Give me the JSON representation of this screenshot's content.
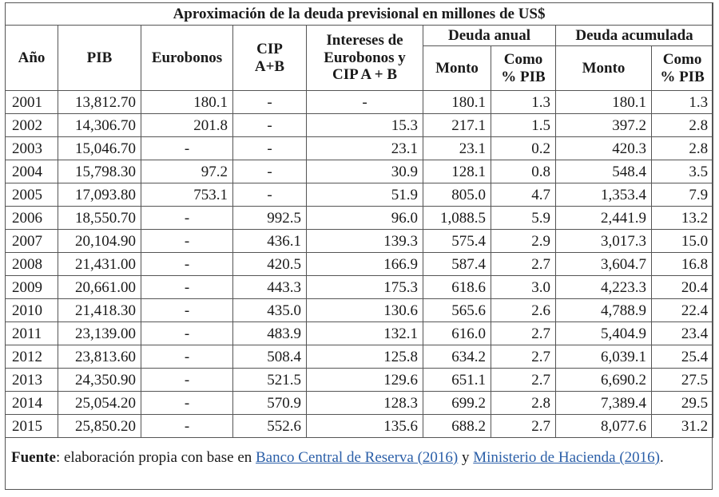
{
  "title": "Aproximación de la deuda previsional en millones de US$",
  "headers": {
    "anio": "Año",
    "pib": "PIB",
    "eurobonos": "Eurobonos",
    "cip_line1": "CIP",
    "cip_line2": "A+B",
    "intereses_line1": "Intereses de",
    "intereses_line2": "Eurobonos y",
    "intereses_line3": "CIP A + B",
    "deuda_anual": "Deuda anual",
    "deuda_acumulada": "Deuda acumulada",
    "monto": "Monto",
    "como_line1": "Como",
    "como_line2": "% PIB"
  },
  "rows": [
    {
      "anio": "2001",
      "pib": "13,812.70",
      "eurobonos": "180.1",
      "cip": "-",
      "intereses": "-",
      "anual_monto": "180.1",
      "anual_pct": "1.3",
      "acum_monto": "180.1",
      "acum_pct": "1.3"
    },
    {
      "anio": "2002",
      "pib": "14,306.70",
      "eurobonos": "201.8",
      "cip": "-",
      "intereses": "15.3",
      "anual_monto": "217.1",
      "anual_pct": "1.5",
      "acum_monto": "397.2",
      "acum_pct": "2.8"
    },
    {
      "anio": "2003",
      "pib": "15,046.70",
      "eurobonos": "-",
      "cip": "-",
      "intereses": "23.1",
      "anual_monto": "23.1",
      "anual_pct": "0.2",
      "acum_monto": "420.3",
      "acum_pct": "2.8"
    },
    {
      "anio": "2004",
      "pib": "15,798.30",
      "eurobonos": "97.2",
      "cip": "-",
      "intereses": "30.9",
      "anual_monto": "128.1",
      "anual_pct": "0.8",
      "acum_monto": "548.4",
      "acum_pct": "3.5"
    },
    {
      "anio": "2005",
      "pib": "17,093.80",
      "eurobonos": "753.1",
      "cip": "-",
      "intereses": "51.9",
      "anual_monto": "805.0",
      "anual_pct": "4.7",
      "acum_monto": "1,353.4",
      "acum_pct": "7.9"
    },
    {
      "anio": "2006",
      "pib": "18,550.70",
      "eurobonos": "-",
      "cip": "992.5",
      "intereses": "96.0",
      "anual_monto": "1,088.5",
      "anual_pct": "5.9",
      "acum_monto": "2,441.9",
      "acum_pct": "13.2"
    },
    {
      "anio": "2007",
      "pib": "20,104.90",
      "eurobonos": "-",
      "cip": "436.1",
      "intereses": "139.3",
      "anual_monto": "575.4",
      "anual_pct": "2.9",
      "acum_monto": "3,017.3",
      "acum_pct": "15.0"
    },
    {
      "anio": "2008",
      "pib": "21,431.00",
      "eurobonos": "-",
      "cip": "420.5",
      "intereses": "166.9",
      "anual_monto": "587.4",
      "anual_pct": "2.7",
      "acum_monto": "3,604.7",
      "acum_pct": "16.8"
    },
    {
      "anio": "2009",
      "pib": "20,661.00",
      "eurobonos": "-",
      "cip": "443.3",
      "intereses": "175.3",
      "anual_monto": "618.6",
      "anual_pct": "3.0",
      "acum_monto": "4,223.3",
      "acum_pct": "20.4"
    },
    {
      "anio": "2010",
      "pib": "21,418.30",
      "eurobonos": "-",
      "cip": "435.0",
      "intereses": "130.6",
      "anual_monto": "565.6",
      "anual_pct": "2.6",
      "acum_monto": "4,788.9",
      "acum_pct": "22.4"
    },
    {
      "anio": "2011",
      "pib": "23,139.00",
      "eurobonos": "-",
      "cip": "483.9",
      "intereses": "132.1",
      "anual_monto": "616.0",
      "anual_pct": "2.7",
      "acum_monto": "5,404.9",
      "acum_pct": "23.4"
    },
    {
      "anio": "2012",
      "pib": "23,813.60",
      "eurobonos": "-",
      "cip": "508.4",
      "intereses": "125.8",
      "anual_monto": "634.2",
      "anual_pct": "2.7",
      "acum_monto": "6,039.1",
      "acum_pct": "25.4"
    },
    {
      "anio": "2013",
      "pib": "24,350.90",
      "eurobonos": "-",
      "cip": "521.5",
      "intereses": "129.6",
      "anual_monto": "651.1",
      "anual_pct": "2.7",
      "acum_monto": "6,690.2",
      "acum_pct": "27.5"
    },
    {
      "anio": "2014",
      "pib": "25,054.20",
      "eurobonos": "-",
      "cip": "570.9",
      "intereses": "128.3",
      "anual_monto": "699.2",
      "anual_pct": "2.8",
      "acum_monto": "7,389.4",
      "acum_pct": "29.5"
    },
    {
      "anio": "2015",
      "pib": "25,850.20",
      "eurobonos": "-",
      "cip": "552.6",
      "intereses": "135.6",
      "anual_monto": "688.2",
      "anual_pct": "2.7",
      "acum_monto": "8,077.6",
      "acum_pct": "31.2"
    }
  ],
  "source": {
    "label": "Fuente",
    "text_before": ": elaboración propia con base en ",
    "link1": "Banco Central de Reserva (2016)",
    "text_between": " y ",
    "link2": "Ministerio de Hacienda (2016)",
    "text_after": "."
  },
  "colors": {
    "link": "#2b5fa8",
    "border": "#555555"
  }
}
